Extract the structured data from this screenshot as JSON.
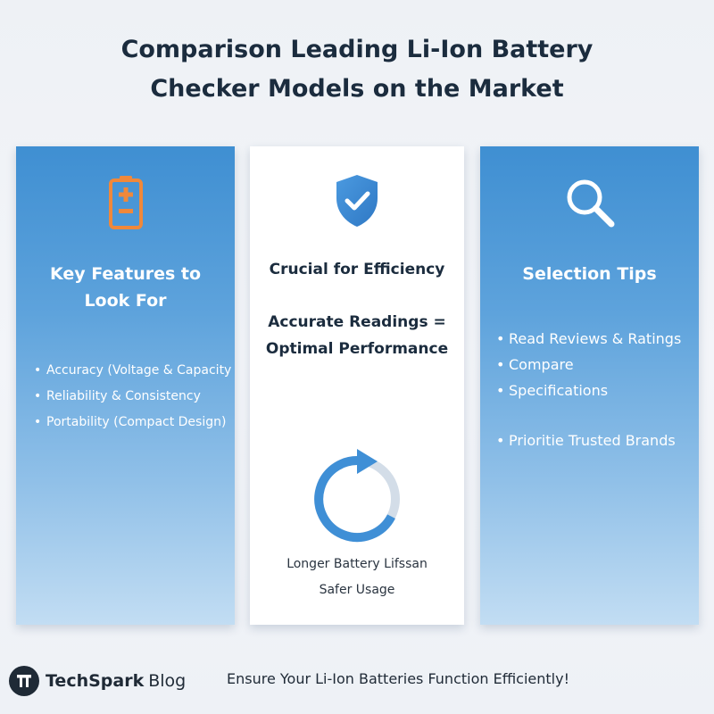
{
  "title": {
    "line1": "Comparison Leading Li-Ion Battery",
    "line2": "Checker Models on the Market"
  },
  "left_panel": {
    "icon": "battery-icon",
    "heading_line1": "Key Features to",
    "heading_line2": "Look For",
    "bullets": [
      "Accuracy (Voltage & Capacity",
      "Reliability & Consistency",
      "Portability (Compact Design)"
    ]
  },
  "center_panel": {
    "icon": "shield-check-icon",
    "heading": "Crucial for Efficiency",
    "statement_line1": "Accurate Readings =",
    "statement_line2": "Optimal Performance",
    "cycle_icon": "refresh-cycle-icon",
    "caption_line1": "Longer Battery Lifssan",
    "caption_line2": "Safer Usage"
  },
  "right_panel": {
    "icon": "magnifier-icon",
    "heading": "Selection Tips",
    "bullets": [
      "Read Reviews & Ratings",
      "Compare",
      "Specifications",
      "Prioritie Trusted Brands"
    ]
  },
  "footer": {
    "brand_bold": "TechSpark",
    "brand_light": "Blog",
    "tagline": "Ensure Your Li-Ion Batteries Function Efficiently!"
  },
  "colors": {
    "panel_blue_top": "#3f8fd2",
    "panel_blue_bottom": "#c2ddf3",
    "accent_orange": "#f0883a",
    "title_text": "#1b2c3e"
  }
}
